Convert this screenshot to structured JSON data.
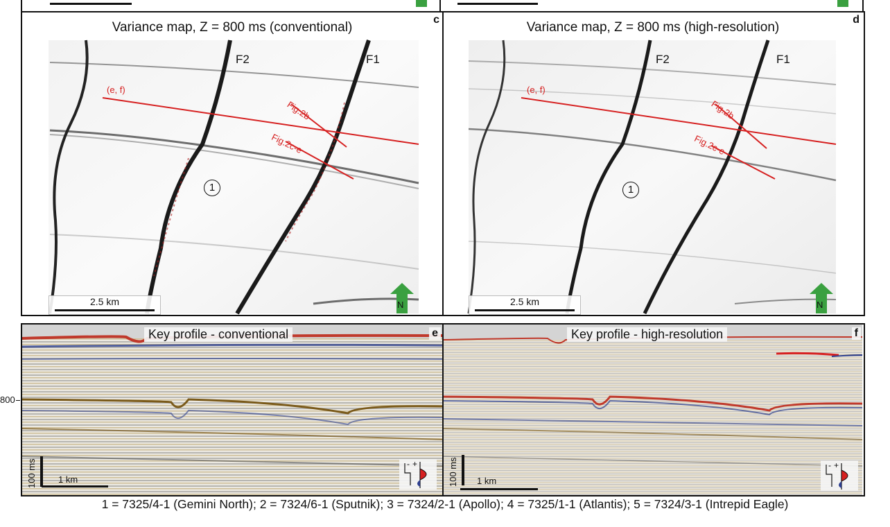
{
  "panels": {
    "c": {
      "label": "c",
      "title": "Variance map, Z = 800 ms (conventional)",
      "fault_f2": "F2",
      "fault_f1": "F1",
      "line_ef": "(e, f)",
      "line_fig2b": "Fig.2b",
      "line_fig2ce": "Fig.2c-e",
      "marker": "1",
      "scale": "2.5 km",
      "north": "N"
    },
    "d": {
      "label": "d",
      "title": "Variance map, Z = 800 ms (high-resolution)",
      "fault_f2": "F2",
      "fault_f1": "F1",
      "line_ef": "(e, f)",
      "line_fig2b": "Fig.2b",
      "line_fig2ce": "Fig.2c-e",
      "marker": "1",
      "scale": "2.5 km",
      "north": "N"
    },
    "e": {
      "label": "e",
      "title": "Key profile - conventional",
      "vscale": "100 ms",
      "hscale": "1 km"
    },
    "f": {
      "label": "f",
      "title": "Key profile -  high-resolution",
      "vscale": "100 ms",
      "hscale": "1 km"
    }
  },
  "depth_tick": "800",
  "legend_plus": "+",
  "legend_minus": "-",
  "caption": "1 = 7325/4-1 (Gemini North); 2 = 7324/6-1 (Sputnik); 3 = 7324/2-1 (Apollo); 4 = 7325/1-1 (Atlantis); 5 = 7324/3-1 (Intrepid Eagle)",
  "colors": {
    "fault_line": "#d62020",
    "north_arrow": "#3aa040",
    "seabed": "#c0392b",
    "horizon_blue": "#2c3e8f"
  }
}
